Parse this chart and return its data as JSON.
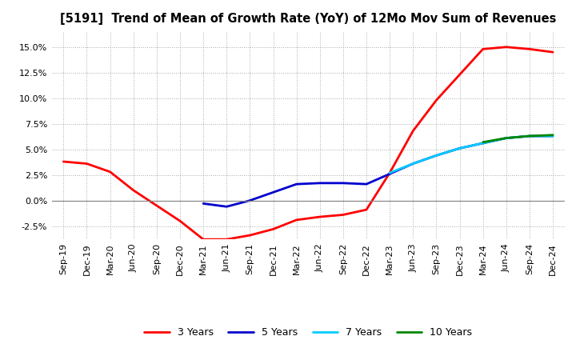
{
  "title": "[5191]  Trend of Mean of Growth Rate (YoY) of 12Mo Mov Sum of Revenues",
  "background_color": "#ffffff",
  "plot_bg_color": "#ffffff",
  "grid_color": "#aaaaaa",
  "x_labels": [
    "Sep-19",
    "Dec-19",
    "Mar-20",
    "Jun-20",
    "Sep-20",
    "Dec-20",
    "Mar-21",
    "Jun-21",
    "Sep-21",
    "Dec-21",
    "Mar-22",
    "Jun-22",
    "Sep-22",
    "Dec-22",
    "Mar-23",
    "Jun-23",
    "Sep-23",
    "Dec-23",
    "Mar-24",
    "Jun-24",
    "Sep-24",
    "Dec-24"
  ],
  "ylim": [
    -0.038,
    0.165
  ],
  "yticks": [
    -0.025,
    0.0,
    0.025,
    0.05,
    0.075,
    0.1,
    0.125,
    0.15
  ],
  "series": {
    "3 Years": {
      "color": "#ff0000",
      "linewidth": 2.0,
      "data_x": [
        0,
        1,
        2,
        3,
        4,
        5,
        6,
        7,
        8,
        9,
        10,
        11,
        12,
        13,
        14,
        15,
        16,
        17,
        18,
        19,
        20,
        21
      ],
      "data_y": [
        0.038,
        0.036,
        0.028,
        0.01,
        -0.005,
        -0.02,
        -0.038,
        -0.038,
        -0.034,
        -0.028,
        -0.019,
        -0.016,
        -0.014,
        -0.009,
        0.027,
        0.068,
        0.098,
        0.123,
        0.148,
        0.15,
        0.148,
        0.145
      ]
    },
    "5 Years": {
      "color": "#0000cc",
      "linewidth": 2.0,
      "data_x": [
        6,
        7,
        8,
        9,
        10,
        11,
        12,
        13,
        14,
        15,
        16,
        17,
        18,
        19,
        20,
        21
      ],
      "data_y": [
        -0.003,
        -0.006,
        0.0,
        0.008,
        0.016,
        0.017,
        0.017,
        0.016,
        0.026,
        0.036,
        0.044,
        0.051,
        0.056,
        0.061,
        0.063,
        0.063
      ]
    },
    "7 Years": {
      "color": "#00ccff",
      "linewidth": 2.0,
      "data_x": [
        14,
        15,
        16,
        17,
        18,
        19,
        20,
        21
      ],
      "data_y": [
        0.027,
        0.036,
        0.044,
        0.051,
        0.056,
        0.061,
        0.063,
        0.063
      ]
    },
    "10 Years": {
      "color": "#008800",
      "linewidth": 2.0,
      "data_x": [
        18,
        19,
        20,
        21
      ],
      "data_y": [
        0.057,
        0.061,
        0.063,
        0.064
      ]
    }
  },
  "legend_entries": [
    "3 Years",
    "5 Years",
    "7 Years",
    "10 Years"
  ]
}
